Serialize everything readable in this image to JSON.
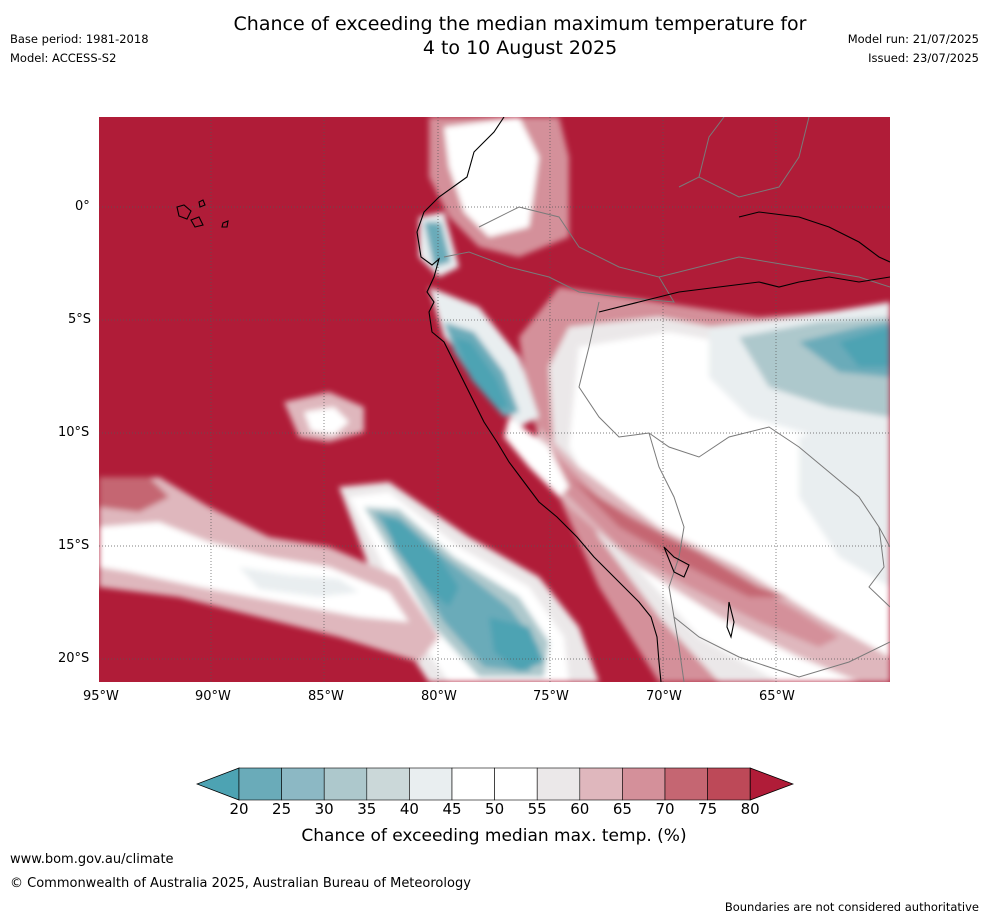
{
  "header": {
    "title_line1": "Chance of exceeding the median maximum temperature for",
    "title_line2": "4 to 10 August 2025",
    "base_period": "Base period: 1981-2018",
    "model": "Model: ACCESS-S2",
    "model_run": "Model run: 21/07/2025",
    "issued": "Issued: 23/07/2025"
  },
  "map": {
    "lat_labels": [
      "0°",
      "5°S",
      "10°S",
      "15°S",
      "20°S"
    ],
    "lon_labels": [
      "95°W",
      "90°W",
      "85°W",
      "80°W",
      "75°W",
      "70°W",
      "65°W"
    ],
    "background_color": "#b01c38"
  },
  "colorbar": {
    "ticks": [
      "20",
      "25",
      "30",
      "35",
      "40",
      "45",
      "50",
      "55",
      "60",
      "65",
      "70",
      "75",
      "80"
    ],
    "colors": [
      "#4da3b3",
      "#6aabb9",
      "#8cb8c4",
      "#adc8cc",
      "#cbd8d9",
      "#e9eef0",
      "#ffffff",
      "#ffffff",
      "#ebe8e9",
      "#dfb7bd",
      "#d4909a",
      "#c56672",
      "#bd4958",
      "#b01c38"
    ],
    "label": "Chance of exceeding median max. temp. (%)"
  },
  "footer": {
    "website": "www.bom.gov.au/climate",
    "copyright": "© Commonwealth of Australia 2025, Australian Bureau of Meteorology",
    "disclaimer": "Boundaries are not considered authoritative"
  }
}
